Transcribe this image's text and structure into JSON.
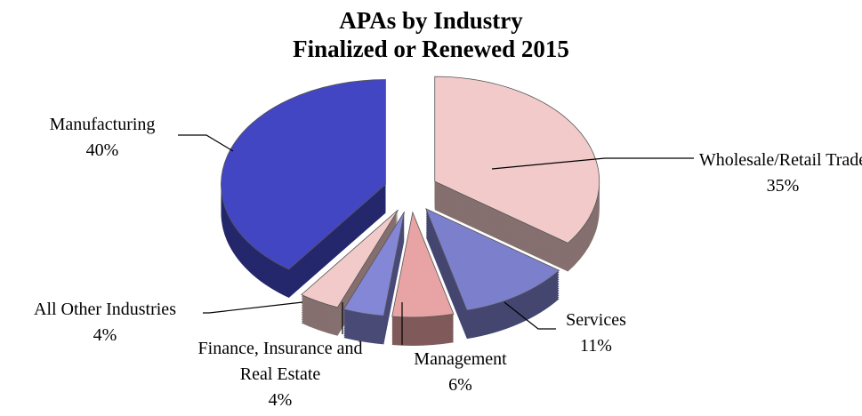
{
  "chart_data": {
    "type": "pie",
    "title": "APAs by Industry",
    "subtitle": "Finalized or Renewed 2015",
    "categories": [
      "Wholesale/Retail Trade",
      "Services",
      "Management",
      "Finance, Insurance and Real Estate",
      "All Other Industries",
      "Manufacturing"
    ],
    "values": [
      35,
      11,
      6,
      4,
      4,
      40
    ],
    "value_labels": [
      "35%",
      "11%",
      "6%",
      "4%",
      "4%",
      "40%"
    ],
    "colors": [
      "#f2caca",
      "#7c80cc",
      "#e8a4a4",
      "#8486d6",
      "#f2caca",
      "#4246c2"
    ]
  }
}
